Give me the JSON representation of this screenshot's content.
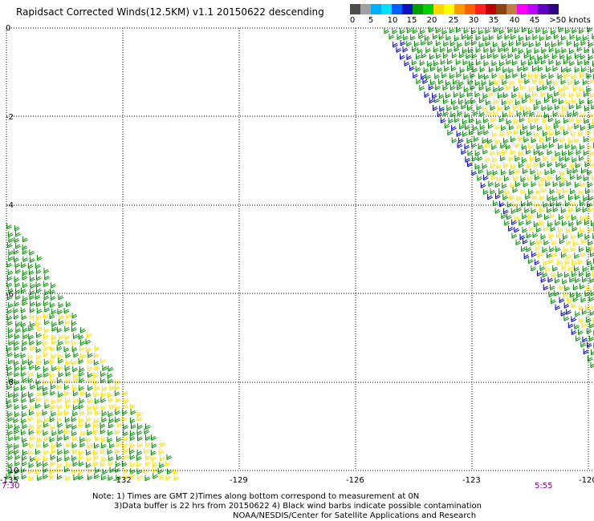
{
  "title": "Rapidsact Corrected Winds(12.5KM) v1.1 20150622 descending",
  "colorbar": {
    "colors": [
      "#4d4d4d",
      "#a0a0a0",
      "#00b0ff",
      "#00e0ff",
      "#0060ff",
      "#1010c0",
      "#00a000",
      "#00d000",
      "#ffd700",
      "#ffff00",
      "#ff9900",
      "#ff6000",
      "#ff2020",
      "#c00000",
      "#8b4513",
      "#c08040",
      "#ff00ff",
      "#c000ff",
      "#6000c0",
      "#300080"
    ],
    "labels": [
      "0",
      "5",
      "10",
      "15",
      "20",
      "25",
      "30",
      "35",
      "40",
      "45",
      ">50 knots"
    ]
  },
  "lat_labels": [
    "0",
    "-2",
    "-4",
    "-6",
    "-8",
    "-10"
  ],
  "lon_labels": [
    "-135",
    "-132",
    "-129",
    "-126",
    "-123",
    "-120"
  ],
  "time_left": "7:30",
  "time_right": "5:55",
  "notes": {
    "line1": "Note: 1) Times are GMT 2)Times along bottom correspond to measurement at 0N",
    "line2": "3)Data buffer is 22 hrs from 20150622 4) Black wind barbs indicate possible contamination",
    "line3": "NOAA/NESDIS/Center for Satellite Applications and Research"
  },
  "wind_colors": {
    "blue": "#0000c0",
    "green": "#008c00",
    "yellow": "#ffe000"
  }
}
